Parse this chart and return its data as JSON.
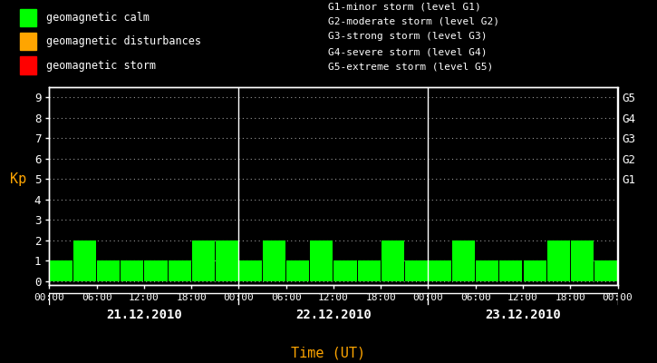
{
  "background_color": "#000000",
  "text_color": "#ffffff",
  "grid_color": "#ffffff",
  "bar_color": "#00ff00",
  "orange_color": "#ffa500",
  "legend_items": [
    {
      "color": "#00ff00",
      "label": "geomagnetic calm"
    },
    {
      "color": "#ffa500",
      "label": "geomagnetic disturbances"
    },
    {
      "color": "#ff0000",
      "label": "geomagnetic storm"
    }
  ],
  "right_legend_lines": [
    "G1-minor storm (level G1)",
    "G2-moderate storm (level G2)",
    "G3-strong storm (level G3)",
    "G4-severe storm (level G4)",
    "G5-extreme storm (level G5)"
  ],
  "ylabel": "Kp",
  "xlabel": "Time (UT)",
  "ylim": [
    -0.2,
    9.5
  ],
  "yticks": [
    0,
    1,
    2,
    3,
    4,
    5,
    6,
    7,
    8,
    9
  ],
  "right_yticks": [
    5,
    6,
    7,
    8,
    9
  ],
  "right_ylabels": [
    "G1",
    "G2",
    "G3",
    "G4",
    "G5"
  ],
  "days": [
    "21.12.2010",
    "22.12.2010",
    "23.12.2010"
  ],
  "kp_day1": [
    1,
    2,
    1,
    1,
    1,
    1,
    2,
    2
  ],
  "kp_day2": [
    1,
    2,
    1,
    2,
    1,
    1,
    2,
    1
  ],
  "kp_day3": [
    1,
    2,
    1,
    1,
    1,
    2,
    2,
    1
  ],
  "x_tick_labels": [
    "00:00",
    "06:00",
    "12:00",
    "18:00",
    "00:00",
    "06:00",
    "12:00",
    "18:00",
    "00:00",
    "06:00",
    "12:00",
    "18:00",
    "00:00"
  ]
}
